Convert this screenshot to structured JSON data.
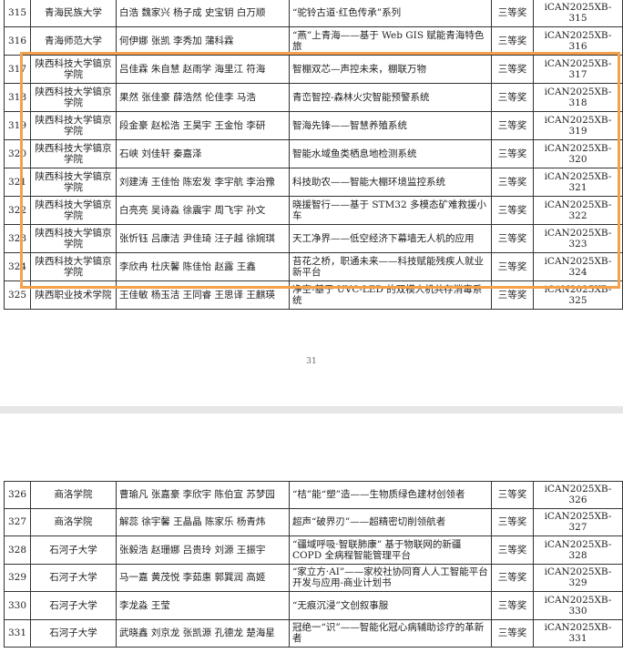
{
  "tables": [
    {
      "rows": [
        [
          "315",
          "青海民族大学",
          "白浩 魏家兴 杨子成 史宝钥 白万顺",
          "“驼铃古道·红色传承”系列",
          "三等奖",
          "iCAN2025XB-315"
        ],
        [
          "316",
          "青海师范大学",
          "何伊娜 张凯 李秀加 蒲科霖",
          "“燕”上青海——基于 Web GIS 赋能青海特色旅",
          "三等奖",
          "iCAN2025XB-316"
        ],
        [
          "317",
          "陕西科技大学镐京学院",
          "吕佳霖 朱自慧 赵雨学 海里江 符海",
          "智棚双芯—声控未来，棚联万物",
          "三等奖",
          "iCAN2025XB-317"
        ],
        [
          "318",
          "陕西科技大学镐京学院",
          "果然 张佳豪 薛浩然 伦佳李 马浩",
          "青峦智控-森林火灾智能预警系统",
          "三等奖",
          "iCAN2025XB-318"
        ],
        [
          "319",
          "陕西科技大学镐京学院",
          "段金豪 赵松浩 王昊宇 王金怡 李研",
          "智海先锋——智慧养殖系统",
          "三等奖",
          "iCAN2025XB-319"
        ],
        [
          "320",
          "陕西科技大学镐京学院",
          "石峡 刘佳轩 秦嘉泽",
          "智能水域鱼类栖息地检测系统",
          "三等奖",
          "iCAN2025XB-320"
        ],
        [
          "321",
          "陕西科技大学镐京学院",
          "刘建涛 王佳怡 陈宏发 李宇航 李治豫",
          "科技助农——智能大棚环境监控系统",
          "三等奖",
          "iCAN2025XB-321"
        ],
        [
          "322",
          "陕西科技大学镐京学院",
          "白亮亮 吴诗淼 徐震宇 周飞宇 孙文",
          "晓援智行——基于 STM32 多模态矿难救援小车",
          "三等奖",
          "iCAN2025XB-322"
        ],
        [
          "323",
          "陕西科技大学镐京学院",
          "张忻钰 吕康洁 尹佳琦 汪子越 徐婉琪",
          "天工净界——低空经济下幕墙无人机的应用",
          "三等奖",
          "iCAN2025XB-323"
        ],
        [
          "324",
          "陕西科技大学镐京学院",
          "李欣冉 杜庆馨 陈佳怡 赵露 王鑫",
          "苔花之桥，职通未来——科技赋能残疾人就业新平台",
          "三等奖",
          "iCAN2025XB-324"
        ],
        [
          "325",
          "陕西职业技术学院",
          "王佳敏 杨玉洁 王同睿 王思译 王麒瑛",
          "净空-基于 UVC-LED 的双模人机共存消毒系统",
          "三等奖",
          "iCAN2025XB-325"
        ]
      ]
    },
    {
      "rows": [
        [
          "326",
          "商洛学院",
          "曹瑜凡 张嘉豪 李欣宇 陈伯宣 苏梦园",
          "“桔”能“塑”造——生物质绿色建材创领者",
          "三等奖",
          "iCAN2025XB-326"
        ],
        [
          "327",
          "商洛学院",
          "解蕊 徐宇馨 王晶晶 陈家乐 杨青炜",
          "超声“破界刃”——超精密切削领航者",
          "三等奖",
          "iCAN2025XB-327"
        ],
        [
          "328",
          "石河子大学",
          "张毅浩 赵珊娜 吕贵玲 刘源 王振宇",
          "“疆域呼吸·智联肺康” 基于物联网的新疆 COPD 全病程智能管理平台",
          "三等奖",
          "iCAN2025XB-328"
        ],
        [
          "329",
          "石河子大学",
          "马一嘉 黄茂悦 李茹惠 郭巽润 高姬",
          "“家立方·AI”——家校社协同育人人工智能平台开发与应用-商业计划书",
          "三等奖",
          "iCAN2025XB-329"
        ],
        [
          "330",
          "石河子大学",
          "李龙淼 王莹",
          "“无痕沉浸”文创叙事服",
          "三等奖",
          "iCAN2025XB-330"
        ],
        [
          "331",
          "石河子大学",
          "武晓鑫 刘京龙 张凯源 孔德龙 楚海星",
          "冠绝一“识”——智能化冠心病辅助诊疗的革新者",
          "三等奖",
          "iCAN2025XB-331"
        ]
      ]
    }
  ],
  "page_number": "31"
}
